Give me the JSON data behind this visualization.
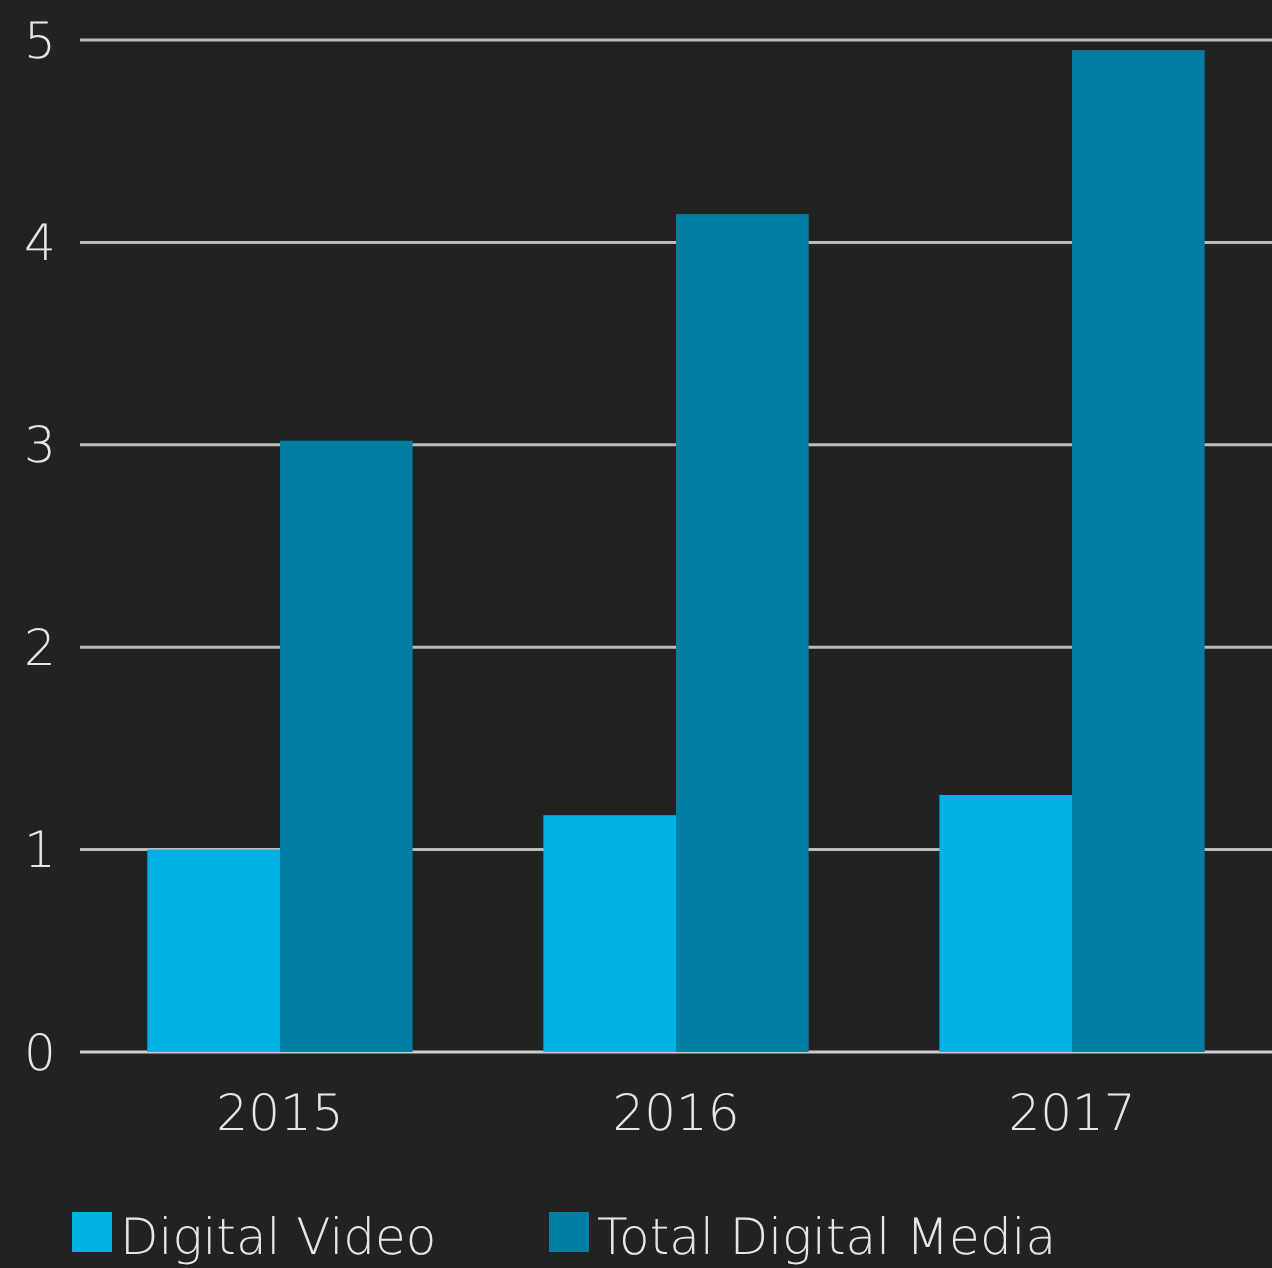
{
  "chart_data": {
    "type": "bar",
    "categories": [
      "2015",
      "2016",
      "2017"
    ],
    "series": [
      {
        "name": "Digital Video",
        "color": "#00b2e3",
        "values": [
          1.0,
          1.17,
          1.27
        ]
      },
      {
        "name": "Total Digital Media",
        "color": "#007ea4",
        "values": [
          3.02,
          4.14,
          4.95
        ]
      }
    ],
    "ylim": [
      0,
      5
    ],
    "yticks": [
      0,
      1,
      2,
      3,
      4,
      5
    ],
    "grid": "y",
    "legend": "bottom"
  }
}
